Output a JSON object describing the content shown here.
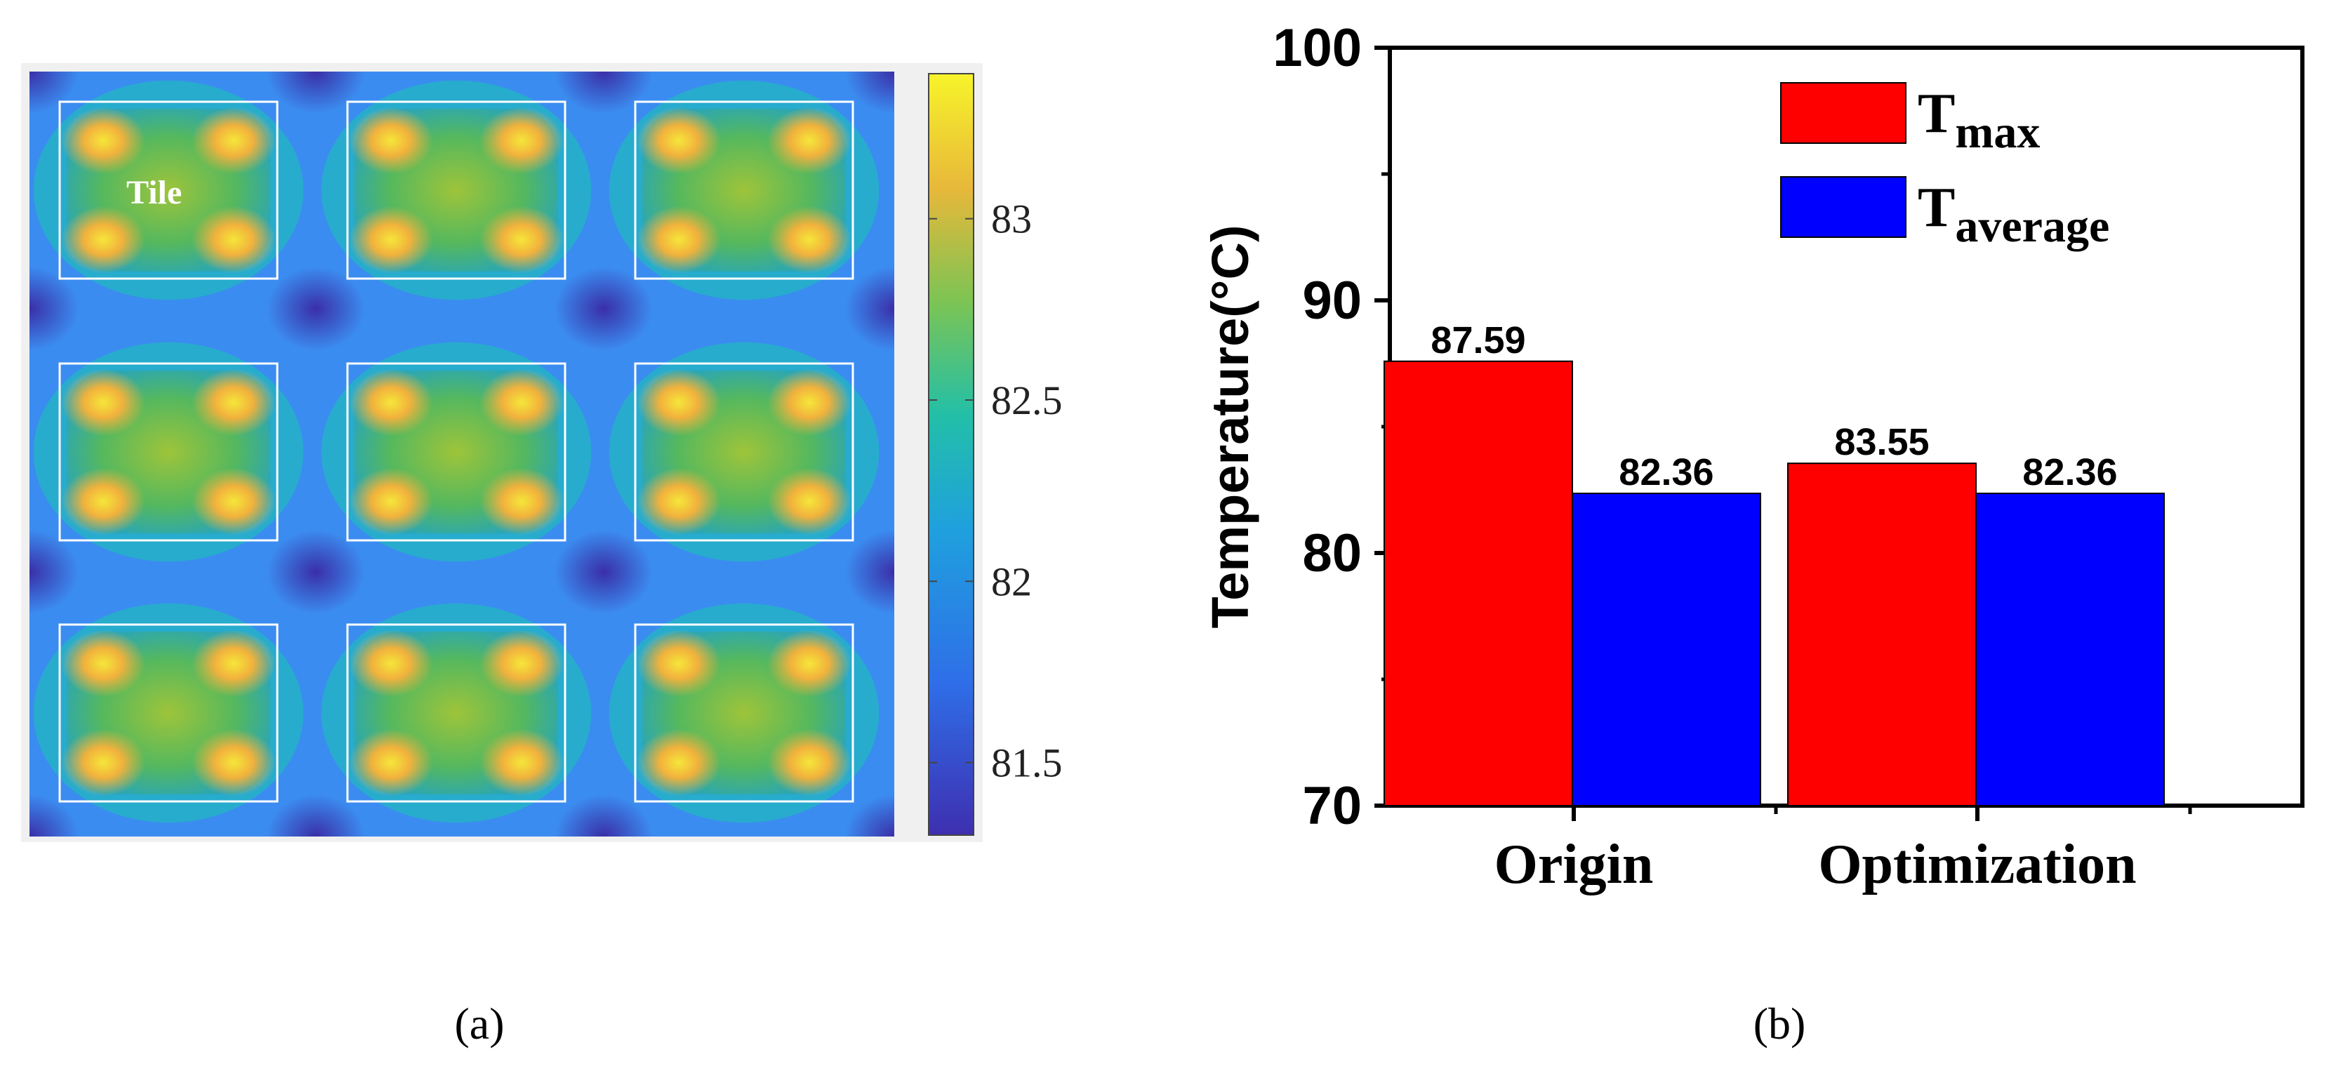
{
  "figure": {
    "panel_a_caption": "(a)",
    "panel_b_caption": "(b)"
  },
  "colors": {
    "tmax": "#ff0000",
    "taverage": "#0000ff",
    "heatmap_low": "#3e2fb0",
    "heatmap_mid": "#2ab3b0",
    "heatmap_high": "#f7f42a"
  },
  "chart_data": [
    {
      "type": "heatmap",
      "title": "",
      "annotation": "Tile",
      "grid": {
        "rows": 3,
        "cols": 3,
        "cell_label": "Tile"
      },
      "colorbar": {
        "ticks": [
          "83",
          "82.5",
          "82",
          "81.5"
        ],
        "range": [
          81.3,
          83.4
        ]
      }
    },
    {
      "type": "bar",
      "title": "",
      "xlabel": "",
      "ylabel": "Temperature(°C)",
      "ylim": [
        70,
        100
      ],
      "yticks": [
        "100",
        "90",
        "80",
        "70"
      ],
      "categories": [
        "Origin",
        "Optimization"
      ],
      "series": [
        {
          "name": "T",
          "subscript": "max",
          "values": [
            87.59,
            83.55
          ],
          "labels": [
            "87.59",
            "83.55"
          ]
        },
        {
          "name": "T",
          "subscript": "average",
          "values": [
            82.36,
            82.36
          ],
          "labels": [
            "82.36",
            "82.36"
          ]
        }
      ],
      "legend": "top-right"
    }
  ]
}
